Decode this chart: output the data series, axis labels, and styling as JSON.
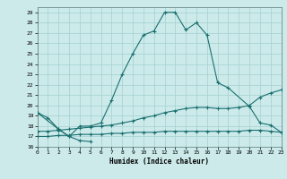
{
  "xlabel": "Humidex (Indice chaleur)",
  "xlim": [
    0,
    23
  ],
  "ylim": [
    16,
    29.5
  ],
  "yticks": [
    16,
    17,
    18,
    19,
    20,
    21,
    22,
    23,
    24,
    25,
    26,
    27,
    28,
    29
  ],
  "xticks": [
    0,
    1,
    2,
    3,
    4,
    5,
    6,
    7,
    8,
    9,
    10,
    11,
    12,
    13,
    14,
    15,
    16,
    17,
    18,
    19,
    20,
    21,
    22,
    23
  ],
  "bg_color": "#cceaea",
  "grid_color": "#aad4d4",
  "line_color": "#1a7070",
  "lines": [
    {
      "x": [
        0,
        1,
        2,
        3,
        4,
        5
      ],
      "y": [
        19.3,
        18.8,
        17.7,
        17.0,
        16.6,
        16.5
      ]
    },
    {
      "x": [
        0,
        2,
        3,
        4,
        5,
        6,
        7,
        8,
        9,
        10,
        11,
        12,
        13,
        14,
        15,
        16,
        17,
        18,
        20,
        21,
        22,
        23
      ],
      "y": [
        19.3,
        17.7,
        17.0,
        18.0,
        18.0,
        18.3,
        20.5,
        23.0,
        25.0,
        26.8,
        27.2,
        29.0,
        29.0,
        27.3,
        28.0,
        26.8,
        22.2,
        21.7,
        19.9,
        18.3,
        18.1,
        17.4
      ]
    },
    {
      "x": [
        0,
        1,
        2,
        3,
        4,
        5,
        6,
        7,
        8,
        9,
        10,
        11,
        12,
        13,
        14,
        15,
        16,
        17,
        18,
        19,
        20,
        21,
        22,
        23
      ],
      "y": [
        17.5,
        17.5,
        17.6,
        17.7,
        17.8,
        17.9,
        18.0,
        18.1,
        18.3,
        18.5,
        18.8,
        19.0,
        19.3,
        19.5,
        19.7,
        19.8,
        19.8,
        19.7,
        19.7,
        19.8,
        20.0,
        20.8,
        21.2,
        21.5
      ]
    },
    {
      "x": [
        0,
        1,
        2,
        3,
        4,
        5,
        6,
        7,
        8,
        9,
        10,
        11,
        12,
        13,
        14,
        15,
        16,
        17,
        18,
        19,
        20,
        21,
        22,
        23
      ],
      "y": [
        17.0,
        17.0,
        17.1,
        17.1,
        17.2,
        17.2,
        17.2,
        17.3,
        17.3,
        17.4,
        17.4,
        17.4,
        17.5,
        17.5,
        17.5,
        17.5,
        17.5,
        17.5,
        17.5,
        17.5,
        17.6,
        17.6,
        17.5,
        17.4
      ]
    }
  ]
}
